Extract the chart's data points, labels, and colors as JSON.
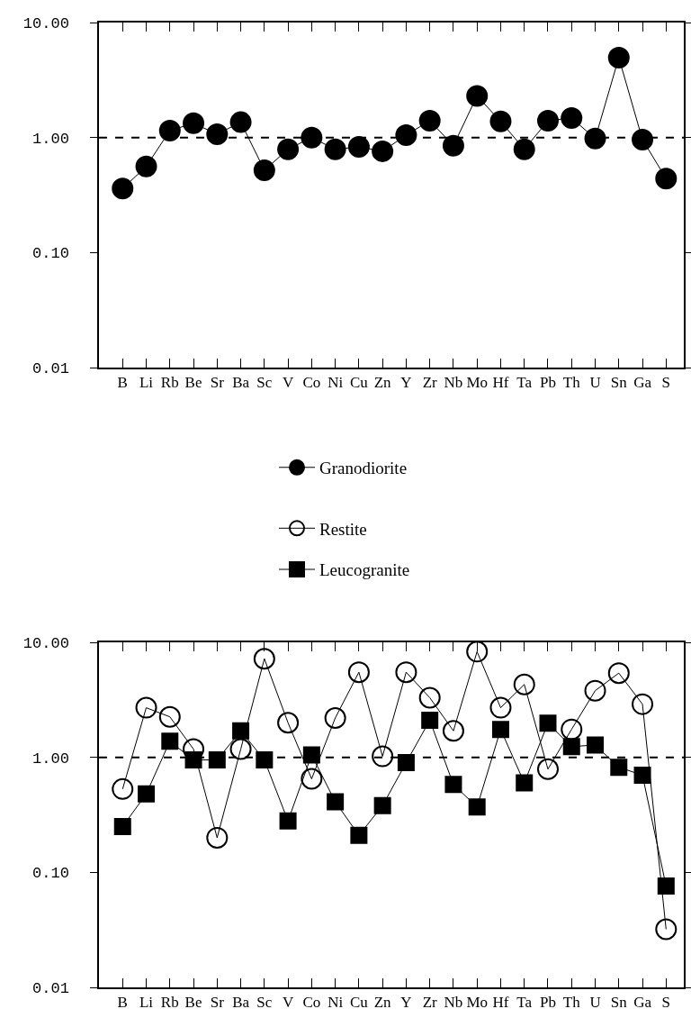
{
  "chart_data": [
    {
      "type": "line",
      "categories": [
        "B",
        "Li",
        "Rb",
        "Be",
        "Sr",
        "Ba",
        "Sc",
        "V",
        "Co",
        "Ni",
        "Cu",
        "Zn",
        "Y",
        "Zr",
        "Nb",
        "Mo",
        "Hf",
        "Ta",
        "Pb",
        "Th",
        "U",
        "Sn",
        "Ga",
        "S"
      ],
      "series": [
        {
          "name": "Granodiorite",
          "color": "#000000",
          "marker": "circle",
          "values": [
            0.36,
            0.56,
            1.15,
            1.33,
            1.07,
            1.36,
            0.52,
            0.79,
            1.0,
            0.79,
            0.83,
            0.76,
            1.05,
            1.4,
            0.85,
            2.3,
            1.38,
            0.79,
            1.4,
            1.48,
            0.98,
            4.95,
            0.96,
            0.44
          ]
        }
      ],
      "log": true,
      "ylim": [
        0.01,
        10
      ],
      "yticks": [
        {
          "value": 0.01,
          "label": "0.01"
        },
        {
          "value": 0.1,
          "label": "0.10"
        },
        {
          "value": 1,
          "label": "1.00"
        },
        {
          "value": 10,
          "label": "10.00"
        }
      ],
      "ref_lines": [
        {
          "axis": "y",
          "value": 1,
          "line_style": "dashed",
          "color": "#000000"
        }
      ],
      "grid": false,
      "legend": "bottom",
      "line_style": "solid"
    },
    {
      "type": "line",
      "categories": [
        "B",
        "Li",
        "Rb",
        "Be",
        "Sr",
        "Ba",
        "Sc",
        "V",
        "Co",
        "Ni",
        "Cu",
        "Zn",
        "Y",
        "Zr",
        "Nb",
        "Mo",
        "Hf",
        "Ta",
        "Pb",
        "Th",
        "U",
        "Sn",
        "Ga",
        "S"
      ],
      "series": [
        {
          "name": "Restite",
          "color": "#000000",
          "marker": "circle-open",
          "values": [
            0.53,
            2.7,
            2.25,
            1.18,
            0.2,
            1.18,
            7.2,
            2.0,
            0.65,
            2.2,
            5.5,
            1.02,
            5.5,
            3.3,
            1.7,
            8.3,
            2.7,
            4.3,
            0.79,
            1.75,
            3.8,
            5.4,
            2.9,
            0.032
          ]
        },
        {
          "name": "Leucogranite",
          "color": "#000000",
          "marker": "square",
          "values": [
            0.25,
            0.48,
            1.38,
            0.95,
            0.95,
            1.7,
            0.95,
            0.28,
            1.05,
            0.41,
            0.21,
            0.38,
            0.9,
            2.1,
            0.58,
            0.37,
            1.75,
            0.6,
            1.98,
            1.24,
            1.28,
            0.82,
            0.7,
            0.076
          ]
        }
      ],
      "log": true,
      "ylim": [
        0.01,
        10
      ],
      "yticks": [
        {
          "value": 0.01,
          "label": "0.01"
        },
        {
          "value": 0.1,
          "label": "0.10"
        },
        {
          "value": 1,
          "label": "1.00"
        },
        {
          "value": 10,
          "label": "10.00"
        }
      ],
      "ref_lines": [
        {
          "axis": "y",
          "value": 1,
          "line_style": "dashed",
          "color": "#000000"
        }
      ],
      "grid": false,
      "legend": "top",
      "line_style": "solid"
    }
  ]
}
